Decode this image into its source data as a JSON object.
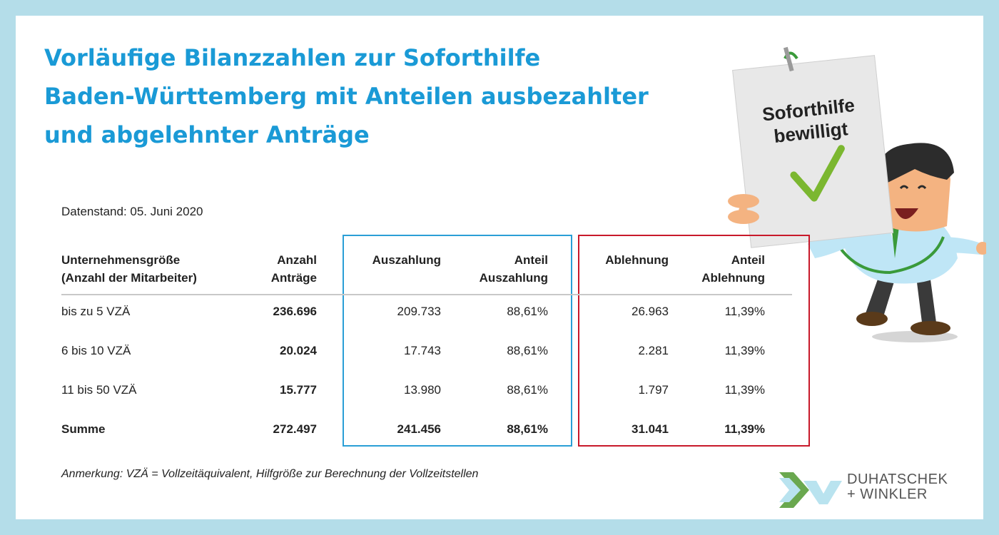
{
  "title": {
    "line1": "Vorläufige Bilanzzahlen zur Soforthilfe",
    "line2": "Baden-Württemberg mit Anteilen ausbezahlter",
    "line3": "und abgelehnter Anträge"
  },
  "illustration": {
    "sign_line1": "Soforthilfe",
    "sign_line2": "bewilligt",
    "colors": {
      "check": "#7bb730",
      "suit": "#bfe6f6",
      "tie": "#3a9a3a",
      "skin": "#f4b381"
    }
  },
  "datestand": "Datenstand: 05. Juni 2020",
  "table": {
    "headers": {
      "size_line1": "Unternehmensgröße",
      "size_line2": "(Anzahl der Mitarbeiter)",
      "count_line1": "Anzahl",
      "count_line2": "Anträge",
      "payout": "Auszahlung",
      "payout_share_line1": "Anteil",
      "payout_share_line2": "Auszahlung",
      "rejection": "Ablehnung",
      "rejection_share_line1": "Anteil",
      "rejection_share_line2": "Ablehnung"
    },
    "rows": [
      {
        "size": "bis zu 5 VZÄ",
        "count": "236.696",
        "payout": "209.733",
        "payout_share": "88,61%",
        "rejection": "26.963",
        "rejection_share": "11,39%"
      },
      {
        "size": "6 bis 10 VZÄ",
        "count": "20.024",
        "payout": "17.743",
        "payout_share": "88,61%",
        "rejection": "2.281",
        "rejection_share": "11,39%"
      },
      {
        "size": "11 bis 50 VZÄ",
        "count": "15.777",
        "payout": "13.980",
        "payout_share": "88,61%",
        "rejection": "1.797",
        "rejection_share": "11,39%"
      },
      {
        "size": "Summe",
        "count": "272.497",
        "payout": "241.456",
        "payout_share": "88,61%",
        "rejection": "31.041",
        "rejection_share": "11,39%"
      }
    ],
    "colors": {
      "payout_box": "#2a9fd6",
      "rejection_box": "#c8192a"
    }
  },
  "note": "Anmerkung: VZÄ = Vollzeitäquivalent, Hilfgröße zur Berechnung der Vollzeitstellen",
  "logo": {
    "line1": "DUHATSCHEK",
    "line2": "+ WINKLER",
    "colors": {
      "green": "#6aa84f",
      "light": "#b9e3ef"
    }
  },
  "colors": {
    "frame": "#b4dde9",
    "title": "#1a9ad6"
  }
}
